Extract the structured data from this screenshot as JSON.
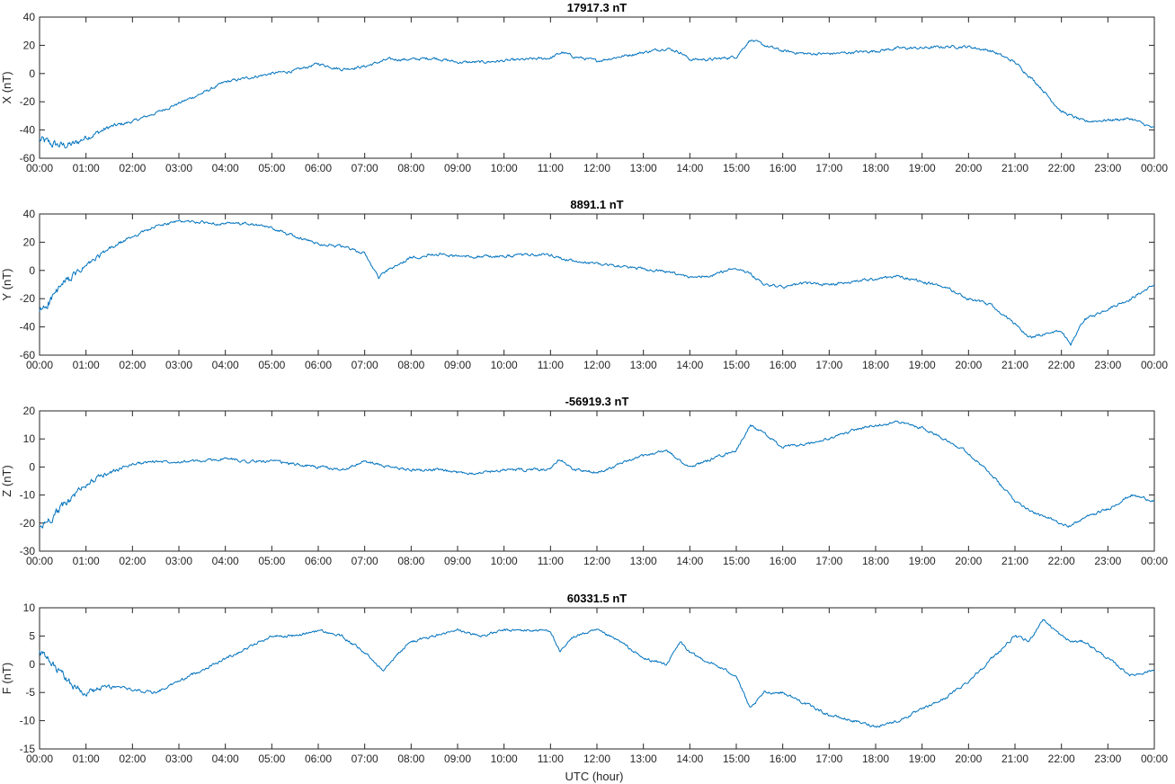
{
  "colors": {
    "series": "#0072bd",
    "axis": "#262626"
  },
  "xlabel": "UTC (hour)",
  "x_tick_labels": [
    "00:00",
    "01:00",
    "02:00",
    "03:00",
    "04:00",
    "05:00",
    "06:00",
    "07:00",
    "08:00",
    "09:00",
    "10:00",
    "11:00",
    "12:00",
    "13:00",
    "14:00",
    "15:00",
    "16:00",
    "17:00",
    "18:00",
    "19:00",
    "20:00",
    "21:00",
    "22:00",
    "23:00",
    "00:00"
  ],
  "chart_data": [
    {
      "type": "line",
      "title": "17917.3 nT",
      "ylabel": "X (nT)",
      "xlim": [
        0,
        24
      ],
      "ylim": [
        -60,
        40
      ],
      "yticks": [
        -60,
        -40,
        -20,
        0,
        20,
        40
      ],
      "grid": false,
      "series": [
        {
          "x": [
            0,
            0.25,
            0.5,
            0.75,
            1,
            1.25,
            1.5,
            2,
            2.5,
            3,
            3.5,
            4,
            4.5,
            5,
            5.5,
            6,
            6.5,
            7,
            7.5,
            8,
            8.5,
            9,
            9.5,
            10,
            10.5,
            11,
            11.25,
            11.5,
            12,
            12.5,
            13,
            13.5,
            13.8,
            14,
            14.5,
            15,
            15.3,
            15.6,
            16,
            16.5,
            17,
            17.5,
            18,
            18.5,
            19,
            19.5,
            20,
            20.5,
            21,
            21.5,
            22,
            22.5,
            23,
            23.5,
            24
          ],
          "y": [
            -47,
            -50,
            -51,
            -50,
            -45,
            -42,
            -38,
            -34,
            -28,
            -21,
            -14,
            -6,
            -3,
            0,
            2,
            7,
            3,
            5,
            10,
            10,
            11,
            8,
            8,
            9,
            10,
            11,
            15,
            12,
            9,
            12,
            15,
            18,
            15,
            10,
            10,
            12,
            24,
            20,
            16,
            14,
            14,
            15,
            16,
            18,
            18,
            19,
            19,
            16,
            8,
            -8,
            -27,
            -34,
            -33,
            -32,
            -39
          ]
        }
      ]
    },
    {
      "type": "line",
      "title": "8891.1 nT",
      "ylabel": "Y (nT)",
      "xlim": [
        0,
        24
      ],
      "ylim": [
        -60,
        40
      ],
      "yticks": [
        -60,
        -40,
        -20,
        0,
        20,
        40
      ],
      "grid": false,
      "series": [
        {
          "x": [
            0,
            0.25,
            0.5,
            1,
            1.5,
            2,
            2.5,
            3,
            3.5,
            4,
            4.5,
            5,
            5.5,
            6,
            6.5,
            7,
            7.3,
            7.5,
            8,
            8.5,
            9,
            9.5,
            10,
            10.5,
            11,
            11.5,
            12,
            12.5,
            13,
            13.5,
            14,
            14.5,
            15,
            15.3,
            15.6,
            16,
            16.5,
            17,
            17.5,
            18,
            18.5,
            19,
            19.5,
            20,
            20.5,
            21,
            21.3,
            21.6,
            22,
            22.2,
            22.5,
            23,
            23.5,
            24
          ],
          "y": [
            -30,
            -20,
            -10,
            3,
            15,
            24,
            31,
            35,
            34,
            33,
            33,
            30,
            24,
            19,
            17,
            12,
            -5,
            0,
            9,
            12,
            10,
            10,
            10,
            11,
            11,
            6,
            5,
            3,
            1,
            -1,
            -5,
            -3,
            2,
            -2,
            -10,
            -12,
            -9,
            -10,
            -8,
            -6,
            -4,
            -8,
            -12,
            -20,
            -25,
            -38,
            -48,
            -45,
            -43,
            -52,
            -35,
            -27,
            -20,
            -10
          ]
        }
      ]
    },
    {
      "type": "line",
      "title": "-56919.3 nT",
      "ylabel": "Z (nT)",
      "xlim": [
        0,
        24
      ],
      "ylim": [
        -30,
        20
      ],
      "yticks": [
        -30,
        -20,
        -10,
        0,
        10,
        20
      ],
      "grid": false,
      "series": [
        {
          "x": [
            0,
            0.25,
            0.5,
            0.75,
            1,
            1.5,
            2,
            2.5,
            3,
            3.5,
            4,
            4.5,
            5,
            5.5,
            6,
            6.5,
            7,
            7.5,
            8,
            8.5,
            9,
            9.5,
            10,
            10.5,
            11,
            11.2,
            11.5,
            12,
            12.5,
            13,
            13.5,
            13.8,
            14,
            14.5,
            15,
            15.3,
            15.6,
            16,
            16.5,
            17,
            17.5,
            18,
            18.5,
            19,
            19.5,
            20,
            20.5,
            21,
            21.5,
            22,
            22.2,
            22.5,
            23,
            23.5,
            24
          ],
          "y": [
            -22,
            -18,
            -14,
            -10,
            -6,
            -2,
            1,
            2,
            2,
            2,
            3,
            2,
            2,
            1,
            0,
            -1,
            2,
            0,
            -1,
            -1,
            -2,
            -2,
            -1,
            -1,
            -1,
            3,
            -1,
            -2,
            1,
            4,
            6,
            2,
            0,
            3,
            6,
            15,
            12,
            7,
            8,
            10,
            13,
            15,
            16,
            14,
            10,
            5,
            -3,
            -12,
            -17,
            -20,
            -21,
            -18,
            -15,
            -10,
            -12
          ]
        }
      ]
    },
    {
      "type": "line",
      "title": "60331.5 nT",
      "ylabel": "F (nT)",
      "xlim": [
        0,
        24
      ],
      "ylim": [
        -15,
        10
      ],
      "yticks": [
        -15,
        -10,
        -5,
        0,
        5,
        10
      ],
      "grid": false,
      "series": [
        {
          "x": [
            0,
            0.25,
            0.5,
            0.75,
            1,
            1.5,
            2,
            2.5,
            3,
            3.5,
            4,
            4.5,
            5,
            5.5,
            6,
            6.5,
            7,
            7.4,
            7.6,
            8,
            8.5,
            9,
            9.5,
            10,
            10.5,
            11,
            11.2,
            11.5,
            12,
            12.5,
            13,
            13.5,
            13.8,
            14,
            14.5,
            15,
            15.3,
            15.6,
            16,
            16.5,
            17,
            17.5,
            18,
            18.5,
            19,
            19.5,
            20,
            20.5,
            21,
            21.3,
            21.6,
            22,
            22.2,
            22.5,
            23,
            23.5,
            24
          ],
          "y": [
            2,
            0,
            -2,
            -4,
            -5,
            -4,
            -4.5,
            -5,
            -3,
            -1,
            1,
            3,
            5,
            5,
            6,
            5,
            2,
            -1,
            1,
            4,
            5,
            6,
            5,
            6,
            6,
            6,
            2,
            5,
            6,
            4,
            1,
            0,
            4,
            2,
            0,
            -2,
            -8,
            -5,
            -5,
            -7,
            -9,
            -10,
            -11,
            -10,
            -8,
            -6,
            -3,
            1,
            5,
            4,
            8,
            5,
            4,
            4,
            1,
            -2,
            -1
          ]
        }
      ]
    }
  ]
}
